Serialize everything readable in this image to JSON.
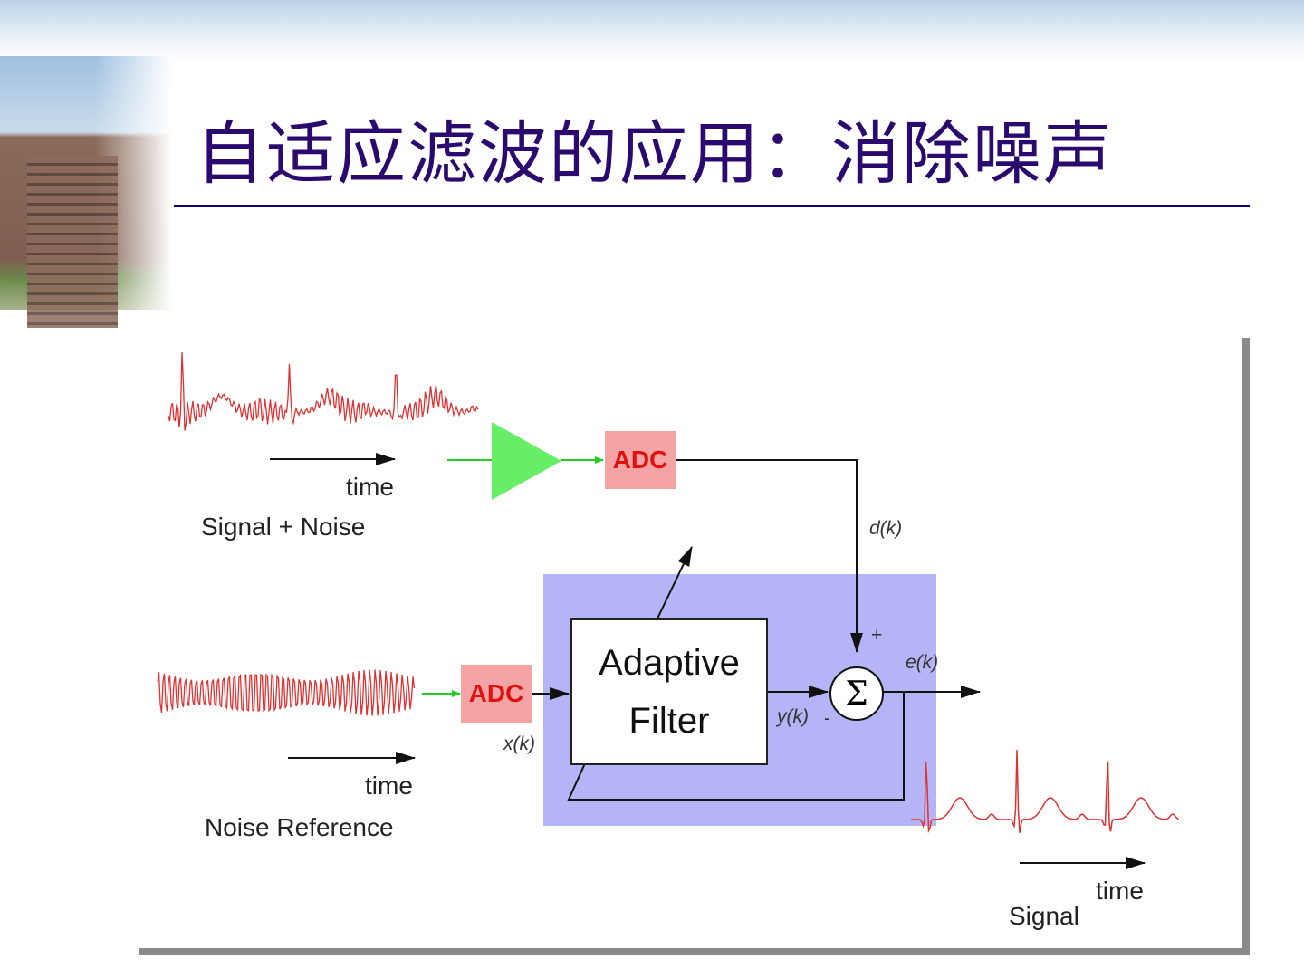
{
  "slide": {
    "title": "自适应滤波的应用：消除噪声"
  },
  "diagram": {
    "input_signal": {
      "time_label": "time",
      "caption": "Signal + Noise"
    },
    "noise_reference": {
      "time_label": "time",
      "caption": "Noise Reference"
    },
    "output_signal": {
      "time_label": "time",
      "caption": "Signal"
    },
    "adc_top": "ADC",
    "adc_bottom": "ADC",
    "filter_line1": "Adaptive",
    "filter_line2": "Filter",
    "sum_symbol": "Σ",
    "d_label": "d(k)",
    "x_label": "x(k)",
    "y_label": "y(k)",
    "e_label": "e(k)",
    "plus_sign": "+",
    "minus_sign": "-",
    "colors": {
      "waveform": "#e03030",
      "amplifier": "#66ee66",
      "adc_fill": "#f4a4a4",
      "adc_text": "#e01010",
      "filter_region": "#b4b4f6"
    }
  }
}
